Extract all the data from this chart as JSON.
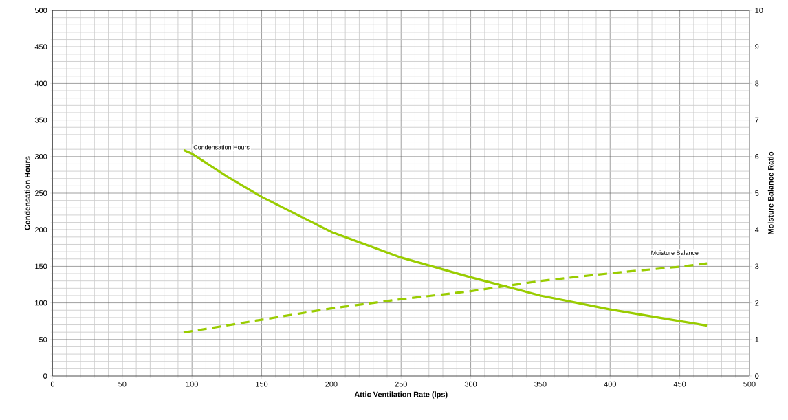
{
  "chart_data": {
    "type": "line",
    "xlabel": "Attic Ventilation Rate (lps)",
    "ylabel": "Condensation Hours",
    "y2label": "Moisture Balance Ratio",
    "xlim": [
      0,
      500
    ],
    "xticks": [
      0,
      50,
      100,
      150,
      200,
      250,
      300,
      350,
      400,
      450,
      500
    ],
    "ylim": [
      0,
      500
    ],
    "yticks": [
      0,
      50,
      100,
      150,
      200,
      250,
      300,
      350,
      400,
      450,
      500
    ],
    "y2lim": [
      0,
      10
    ],
    "y2ticks": [
      0,
      1,
      2,
      3,
      4,
      5,
      6,
      7,
      8,
      9,
      10
    ],
    "grid": true,
    "marker": "none",
    "series": [
      {
        "name": "Condensation Hours",
        "color": "#99cc00",
        "line_style": "solid",
        "x": [
          94,
          100,
          125,
          150,
          175,
          200,
          250,
          300,
          350,
          400,
          450,
          469.5
        ],
        "values": [
          309,
          304,
          273,
          245,
          221,
          197,
          162,
          135,
          110,
          91,
          75,
          69
        ]
      },
      {
        "name": "Moisture Balance",
        "color": "#99cc00",
        "line_style": "dashed",
        "axis": "y2",
        "x": [
          94,
          150,
          200,
          250,
          300,
          350,
          400,
          450,
          469.5
        ],
        "values": [
          1.19,
          1.54,
          1.85,
          2.1,
          2.32,
          2.6,
          2.81,
          2.99,
          3.08
        ]
      }
    ]
  }
}
